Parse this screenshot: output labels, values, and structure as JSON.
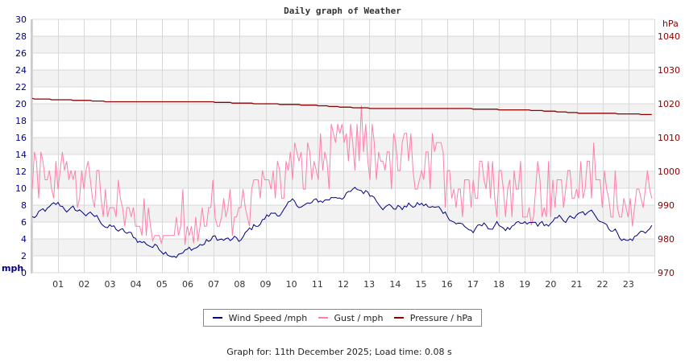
{
  "colors": {
    "wind": "#000080",
    "gust": "#ff7fa8",
    "pressure": "#8b0000",
    "band": "#f2f2f2",
    "grid": "#d8d8d8"
  },
  "chart_data": {
    "type": "line",
    "title": "Daily graph of Weather",
    "xlabel": "",
    "ylabel": "mph",
    "ylabel_right": "hPa",
    "ylim": [
      0,
      30
    ],
    "ylim_right": [
      970,
      1040
    ],
    "yticks_left": [
      0,
      2,
      4,
      6,
      8,
      10,
      12,
      14,
      16,
      18,
      20,
      22,
      24,
      26,
      28,
      30
    ],
    "yticks_right": [
      970,
      980,
      990,
      1000,
      1010,
      1020,
      1030,
      1040
    ],
    "x_tick_labels": [
      "01",
      "02",
      "03",
      "04",
      "05",
      "06",
      "07",
      "08",
      "09",
      "10",
      "11",
      "12",
      "13",
      "14",
      "15",
      "16",
      "17",
      "18",
      "19",
      "20",
      "21",
      "22",
      "23"
    ],
    "x_hours": [
      0,
      1,
      2,
      3,
      4,
      5,
      6,
      7,
      8,
      9,
      10,
      11,
      12,
      13,
      14,
      15,
      16,
      17,
      18,
      19,
      20,
      21,
      22,
      23,
      23.9
    ],
    "grid": true,
    "legend_position": "bottom",
    "series": [
      {
        "name": "Wind Speed /mph",
        "axis": "left",
        "values": [
          6.5,
          7.5,
          7.0,
          5.5,
          3.8,
          3.0,
          2.7,
          4.0,
          3.4,
          6.5,
          7.8,
          8.0,
          9.5,
          9.5,
          8.0,
          8.0,
          7.0,
          5.0,
          5.5,
          5.0,
          5.5,
          6.5,
          6.5,
          4.0,
          5.5
        ]
      },
      {
        "name": "Gust / mph",
        "axis": "left",
        "values": [
          11,
          11,
          10,
          9.5,
          6,
          4,
          4.5,
          7,
          7,
          10,
          12,
          13,
          14,
          14,
          13,
          13,
          12,
          10,
          10,
          9,
          10,
          10.5,
          10,
          8,
          8
        ]
      },
      {
        "name": "Pressure / hPa",
        "axis": "right",
        "values": [
          1021.5,
          1021.2,
          1021.0,
          1020.6,
          1020.5,
          1020.5,
          1020.7,
          1020.5,
          1020.2,
          1020.0,
          1019.8,
          1019.5,
          1019.0,
          1018.7,
          1018.6,
          1018.5,
          1018.5,
          1018.5,
          1018.3,
          1018.2,
          1017.8,
          1017.3,
          1017.2,
          1017.0,
          1016.8
        ]
      }
    ]
  },
  "legend": {
    "items": [
      {
        "label": "Wind Speed /mph",
        "color": "#000080"
      },
      {
        "label": "Gust / mph",
        "color": "#ff7fa8"
      },
      {
        "label": "Pressure / hPa",
        "color": "#8b0000"
      }
    ]
  },
  "footer": {
    "text": "Graph for: 11th December 2025; Load time: 0.08 s"
  }
}
